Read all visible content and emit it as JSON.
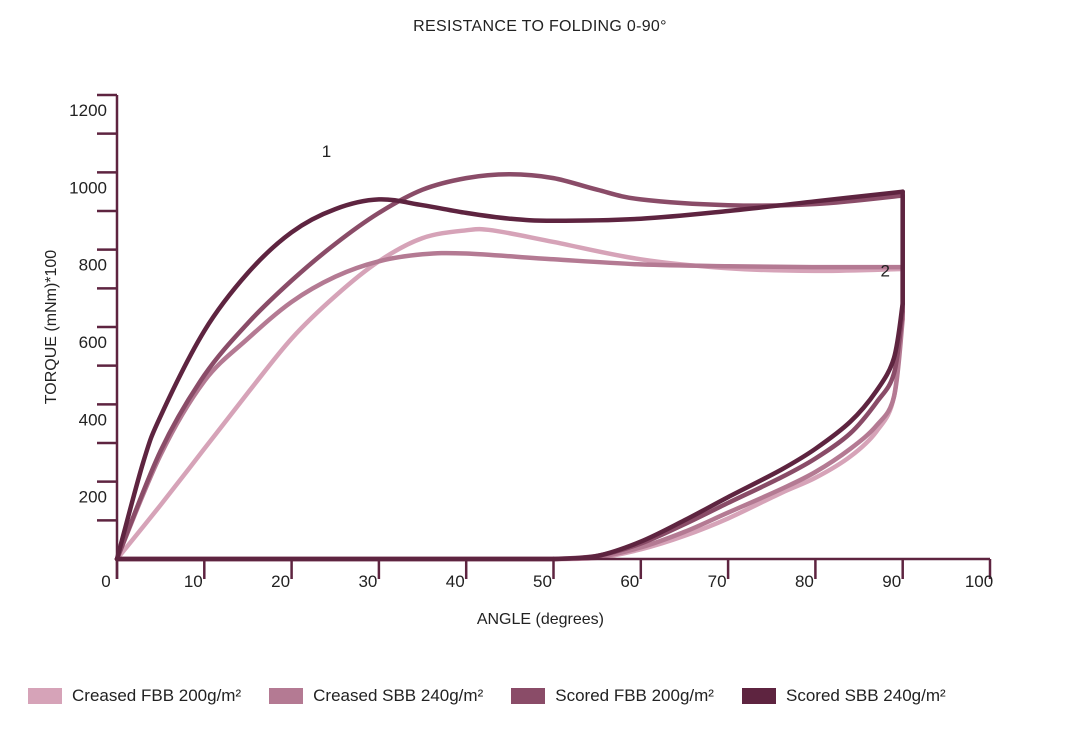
{
  "chart_data": {
    "type": "line",
    "title": "RESISTANCE TO FOLDING 0-90°",
    "xlabel": "ANGLE (degrees)",
    "ylabel": "TORQUE  (mNm)*100",
    "xlim": [
      0,
      100
    ],
    "ylim": [
      0,
      1200
    ],
    "x_ticks": [
      0,
      10,
      20,
      30,
      40,
      50,
      60,
      70,
      80,
      90,
      100
    ],
    "y_ticks": [
      200,
      400,
      600,
      800,
      1000,
      1200
    ],
    "grid": false,
    "legend_position": "bottom",
    "annotations": [
      {
        "text": "1",
        "x": 24,
        "y": 1040
      },
      {
        "text": "2",
        "x": 88,
        "y": 730
      }
    ],
    "series": [
      {
        "name": "Creased FBB 200g/m²",
        "color": "#d6a3b8",
        "loading": [
          [
            0,
            0
          ],
          [
            5,
            140
          ],
          [
            10,
            285
          ],
          [
            15,
            430
          ],
          [
            20,
            570
          ],
          [
            25,
            680
          ],
          [
            30,
            770
          ],
          [
            35,
            830
          ],
          [
            40,
            850
          ],
          [
            43,
            850
          ],
          [
            50,
            820
          ],
          [
            60,
            775
          ],
          [
            70,
            752
          ],
          [
            80,
            745
          ],
          [
            90,
            750
          ]
        ],
        "unloading": [
          [
            90,
            650
          ],
          [
            89,
            420
          ],
          [
            87,
            330
          ],
          [
            84,
            265
          ],
          [
            80,
            210
          ],
          [
            76,
            170
          ],
          [
            70,
            105
          ],
          [
            65,
            60
          ],
          [
            60,
            25
          ],
          [
            55,
            3
          ],
          [
            50,
            0
          ],
          [
            0,
            0
          ]
        ]
      },
      {
        "name": "Creased SBB 240g/m²",
        "color": "#b47a93",
        "loading": [
          [
            0,
            0
          ],
          [
            5,
            270
          ],
          [
            10,
            460
          ],
          [
            15,
            570
          ],
          [
            20,
            665
          ],
          [
            25,
            730
          ],
          [
            30,
            770
          ],
          [
            35,
            788
          ],
          [
            40,
            790
          ],
          [
            50,
            775
          ],
          [
            60,
            762
          ],
          [
            70,
            757
          ],
          [
            80,
            755
          ],
          [
            90,
            755
          ]
        ],
        "unloading": [
          [
            90,
            620
          ],
          [
            89,
            420
          ],
          [
            87,
            345
          ],
          [
            84,
            285
          ],
          [
            80,
            225
          ],
          [
            76,
            180
          ],
          [
            70,
            120
          ],
          [
            65,
            70
          ],
          [
            60,
            30
          ],
          [
            55,
            5
          ],
          [
            50,
            0
          ],
          [
            0,
            0
          ]
        ]
      },
      {
        "name": "Scored FBB 200g/m²",
        "color": "#8a4c68",
        "loading": [
          [
            0,
            0
          ],
          [
            5,
            280
          ],
          [
            10,
            475
          ],
          [
            15,
            610
          ],
          [
            20,
            720
          ],
          [
            25,
            815
          ],
          [
            30,
            895
          ],
          [
            35,
            955
          ],
          [
            40,
            985
          ],
          [
            45,
            995
          ],
          [
            50,
            985
          ],
          [
            55,
            955
          ],
          [
            60,
            930
          ],
          [
            70,
            915
          ],
          [
            80,
            918
          ],
          [
            90,
            940
          ]
        ],
        "unloading": [
          [
            90,
            640
          ],
          [
            89,
            480
          ],
          [
            87,
            405
          ],
          [
            84,
            325
          ],
          [
            80,
            260
          ],
          [
            76,
            210
          ],
          [
            70,
            145
          ],
          [
            65,
            90
          ],
          [
            60,
            40
          ],
          [
            55,
            8
          ],
          [
            50,
            0
          ],
          [
            0,
            0
          ]
        ]
      },
      {
        "name": "Scored SBB 240g/m²",
        "color": "#5e2440",
        "loading": [
          [
            0,
            0
          ],
          [
            3,
            250
          ],
          [
            5,
            370
          ],
          [
            10,
            590
          ],
          [
            15,
            740
          ],
          [
            20,
            845
          ],
          [
            25,
            905
          ],
          [
            30,
            930
          ],
          [
            35,
            915
          ],
          [
            40,
            895
          ],
          [
            45,
            880
          ],
          [
            50,
            875
          ],
          [
            60,
            880
          ],
          [
            70,
            900
          ],
          [
            80,
            925
          ],
          [
            90,
            950
          ]
        ],
        "unloading": [
          [
            90,
            660
          ],
          [
            89,
            520
          ],
          [
            87,
            435
          ],
          [
            84,
            355
          ],
          [
            80,
            285
          ],
          [
            76,
            230
          ],
          [
            70,
            160
          ],
          [
            65,
            100
          ],
          [
            60,
            45
          ],
          [
            55,
            8
          ],
          [
            50,
            0
          ],
          [
            0,
            0
          ]
        ]
      }
    ]
  }
}
